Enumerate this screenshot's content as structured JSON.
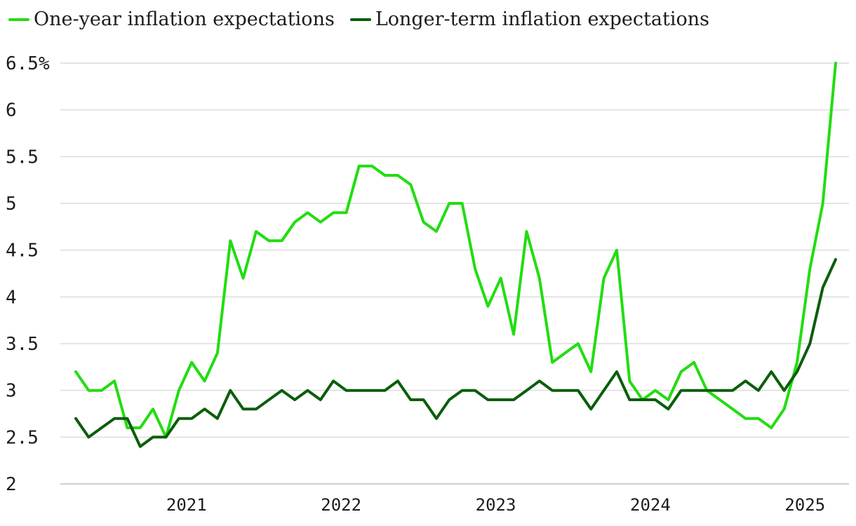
{
  "chart_data": {
    "type": "line",
    "title": "",
    "xlabel": "",
    "ylabel": "",
    "y_unit_suffix": "%",
    "ylim": [
      2,
      6.5
    ],
    "yticks": [
      2,
      2.5,
      3,
      3.5,
      4,
      4.5,
      5,
      5.5,
      6,
      6.5
    ],
    "ytick_labels": [
      "2",
      "2.5",
      "3",
      "3.5",
      "4",
      "4.5",
      "5",
      "5.5",
      "6",
      "6.5%"
    ],
    "xlim": [
      2020.42,
      2025.33
    ],
    "xticks": [
      2021,
      2022,
      2023,
      2024,
      2025
    ],
    "xtick_labels": [
      "2021",
      "2022",
      "2023",
      "2024",
      "2025"
    ],
    "legend_position": "top-left",
    "x_start": 2020.42,
    "x_step": 0.0833,
    "series": [
      {
        "name": "One-year inflation expectations",
        "color": "#22dd11",
        "values": [
          3.2,
          3.0,
          3.0,
          3.1,
          2.6,
          2.6,
          2.8,
          2.5,
          3.0,
          3.3,
          3.1,
          3.4,
          4.6,
          4.2,
          4.7,
          4.6,
          4.6,
          4.8,
          4.9,
          4.8,
          4.9,
          4.9,
          5.4,
          5.4,
          5.3,
          5.3,
          5.2,
          4.8,
          4.7,
          5.0,
          5.0,
          4.3,
          3.9,
          4.2,
          3.6,
          4.7,
          4.2,
          3.3,
          3.4,
          3.5,
          3.2,
          4.2,
          4.5,
          3.1,
          2.9,
          3.0,
          2.9,
          3.2,
          3.3,
          3.0,
          2.9,
          2.8,
          2.7,
          2.7,
          2.6,
          2.8,
          3.3,
          4.3,
          5.0,
          6.5
        ]
      },
      {
        "name": "Longer-term inflation expectations",
        "color": "#0b5e0b",
        "values": [
          2.7,
          2.5,
          2.6,
          2.7,
          2.7,
          2.4,
          2.5,
          2.5,
          2.7,
          2.7,
          2.8,
          2.7,
          3.0,
          2.8,
          2.8,
          2.9,
          3.0,
          2.9,
          3.0,
          2.9,
          3.1,
          3.0,
          3.0,
          3.0,
          3.0,
          3.1,
          2.9,
          2.9,
          2.7,
          2.9,
          3.0,
          3.0,
          2.9,
          2.9,
          2.9,
          3.0,
          3.1,
          3.0,
          3.0,
          3.0,
          2.8,
          3.0,
          3.2,
          2.9,
          2.9,
          2.9,
          2.8,
          3.0,
          3.0,
          3.0,
          3.0,
          3.0,
          3.1,
          3.0,
          3.2,
          3.0,
          3.2,
          3.5,
          4.1,
          4.4
        ]
      }
    ]
  }
}
